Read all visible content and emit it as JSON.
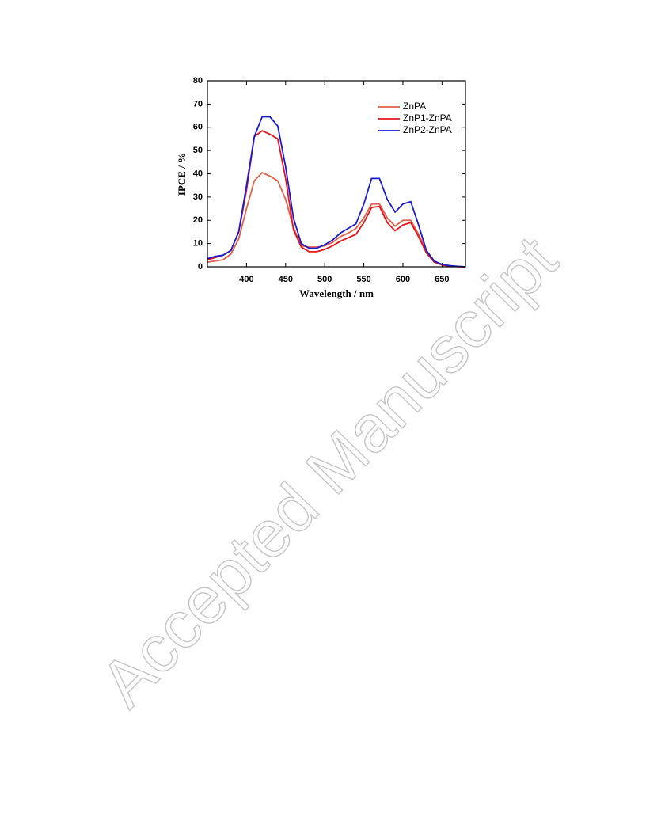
{
  "chart_data": {
    "type": "line",
    "xlabel": "Wavelength / nm",
    "ylabel": "IPCE / %",
    "x": [
      350,
      360,
      370,
      380,
      390,
      400,
      410,
      420,
      430,
      440,
      450,
      460,
      470,
      480,
      490,
      500,
      510,
      520,
      530,
      540,
      550,
      560,
      570,
      580,
      590,
      600,
      610,
      620,
      630,
      640,
      650,
      660,
      670,
      680
    ],
    "series": [
      {
        "name": "ZnPA",
        "color": "#e0604a",
        "values": [
          2,
          2.5,
          3,
          5.5,
          12,
          25,
          37,
          40.5,
          39,
          37,
          29,
          17,
          9,
          8.5,
          8.5,
          9,
          10.5,
          13,
          14.5,
          16.5,
          21,
          27,
          27,
          21,
          17.5,
          20,
          20,
          14,
          7,
          2.5,
          0.8,
          0.3,
          0.1,
          0
        ]
      },
      {
        "name": "ZnP1-ZnPA",
        "color": "#e8141c",
        "values": [
          3,
          4,
          5,
          7,
          15,
          33,
          56,
          58.5,
          57,
          55,
          38,
          16,
          8.5,
          6.5,
          6.5,
          7.5,
          9,
          11,
          12.5,
          14,
          19,
          25.5,
          26,
          19,
          15.5,
          18,
          19,
          13,
          6,
          2,
          0.8,
          0.3,
          0.1,
          0
        ]
      },
      {
        "name": "ZnP2-ZnPA",
        "color": "#1a1ad0",
        "values": [
          3.5,
          4.5,
          5,
          7,
          15,
          35,
          56,
          64.5,
          64.5,
          60.5,
          43,
          21,
          10,
          8,
          8,
          9.5,
          11.5,
          14.5,
          16.5,
          18.5,
          27,
          38,
          38,
          29,
          23.5,
          27,
          28,
          18,
          7,
          2.5,
          1,
          0.5,
          0.2,
          0
        ]
      }
    ],
    "xlim": [
      350,
      680
    ],
    "xticks": [
      400,
      450,
      500,
      550,
      600,
      650
    ],
    "ylim": [
      0,
      80
    ],
    "yticks": [
      0,
      10,
      20,
      30,
      40,
      50,
      60,
      70,
      80
    ],
    "legend": "upper right"
  },
  "watermark": "Accepted Manuscript"
}
